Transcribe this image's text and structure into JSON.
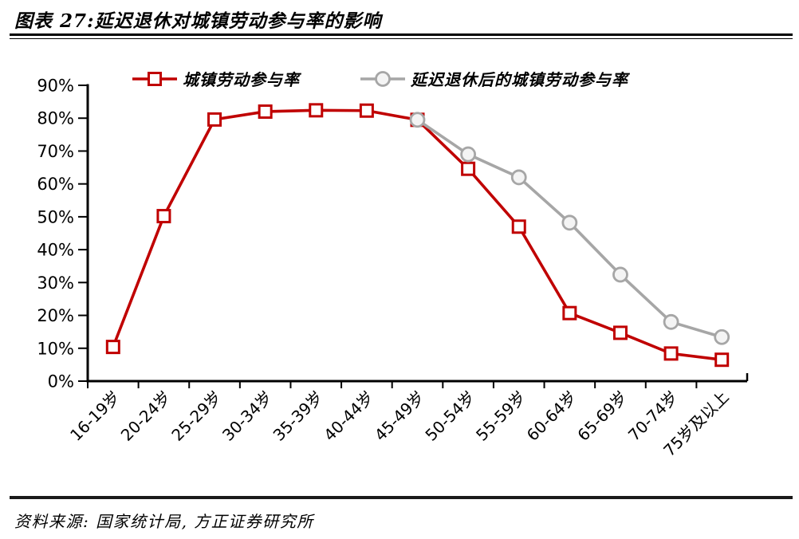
{
  "page": {
    "title": "图表 27:延迟退休对城镇劳动参与率的影响",
    "source": "资料来源: 国家统计局, 方正证券研究所"
  },
  "chart_data": {
    "type": "line",
    "title": "图表 27:延迟退休对城镇劳动参与率的影响",
    "categories": [
      "16-19岁",
      "20-24岁",
      "25-29岁",
      "30-34岁",
      "35-39岁",
      "40-44岁",
      "45-49岁",
      "50-54岁",
      "55-59岁",
      "60-64岁",
      "65-69岁",
      "70-74岁",
      "75岁及以上"
    ],
    "series": [
      {
        "name": "城镇劳动参与率",
        "marker": "square",
        "color": "#c00000",
        "values": [
          10.4,
          50.2,
          79.6,
          82.0,
          82.4,
          82.3,
          79.5,
          64.6,
          47.0,
          20.7,
          14.7,
          8.4,
          6.5
        ]
      },
      {
        "name": "延迟退休后的城镇劳动参与率",
        "marker": "circle",
        "color": "#a6a6a6",
        "values": [
          null,
          null,
          null,
          null,
          null,
          null,
          79.5,
          69.0,
          62.0,
          48.2,
          32.4,
          18.0,
          13.4
        ]
      }
    ],
    "ylim": [
      0,
      90
    ],
    "ytick_step": 10,
    "ytick_format": "percent",
    "xlabel": "",
    "ylabel": "",
    "grid": false,
    "legend_position": "top"
  }
}
